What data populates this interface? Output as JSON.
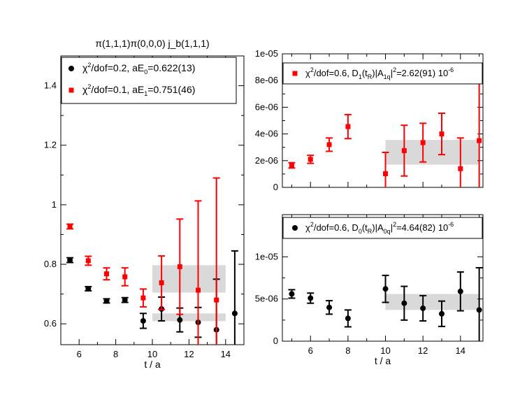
{
  "chart_data": [
    {
      "id": "left",
      "type": "scatter",
      "title": "π(1,1,1)π(0,0,0)  j_b(1,1,1)",
      "xlabel": "t / a",
      "ylabel": "",
      "xlim": [
        5,
        15
      ],
      "ylim": [
        0.53,
        1.5
      ],
      "xticks": [
        6,
        8,
        10,
        12,
        14
      ],
      "xtick_labels": [
        "6",
        "8",
        "10",
        "12",
        "14"
      ],
      "yticks": [
        0.6,
        0.8,
        1.0,
        1.2,
        1.4
      ],
      "ytick_labels": [
        "0.6",
        "0.8",
        "1",
        "1.2",
        "1.4"
      ],
      "legend": [
        {
          "series": "black",
          "chi": "χ",
          "chi_sup": "2",
          "text1": "/dof=0.2,  aE",
          "sub": "0",
          "text2": "=0.622(13)"
        },
        {
          "series": "red",
          "chi": "χ",
          "chi_sup": "2",
          "text1": "/dof=0.1,  aE",
          "sub": "1",
          "text2": "=0.751(46)"
        }
      ],
      "bands": [
        {
          "series": "black",
          "x": [
            10,
            14
          ],
          "y": [
            0.609,
            0.635
          ]
        },
        {
          "series": "red",
          "x": [
            10,
            14
          ],
          "y": [
            0.705,
            0.797
          ]
        }
      ],
      "series": [
        {
          "name": "black",
          "color": "#000000",
          "marker": "circle",
          "x": [
            5.5,
            6.5,
            7.5,
            8.5,
            9.5,
            10.5,
            11.5,
            12.5,
            13.5,
            14.5
          ],
          "y": [
            0.814,
            0.718,
            0.677,
            0.68,
            0.61,
            0.65,
            0.613,
            0.605,
            0.58,
            0.635
          ],
          "err": [
            0.008,
            0.007,
            0.007,
            0.008,
            0.025,
            0.04,
            0.04,
            0.05,
            0.17,
            0.21
          ]
        },
        {
          "name": "red",
          "color": "#ff0000",
          "marker": "square",
          "x": [
            5.5,
            6.5,
            7.5,
            8.5,
            9.5,
            10.5,
            11.5,
            12.5,
            13.5
          ],
          "y": [
            0.927,
            0.812,
            0.768,
            0.758,
            0.687,
            0.738,
            0.792,
            0.713,
            0.68
          ],
          "err": [
            0.008,
            0.015,
            0.02,
            0.03,
            0.03,
            0.09,
            0.16,
            0.3,
            0.41
          ]
        }
      ]
    },
    {
      "id": "top-right",
      "type": "scatter",
      "title": "",
      "xlabel": "",
      "ylabel": "",
      "xlim": [
        4.5,
        15.2
      ],
      "ylim": [
        0,
        1e-05
      ],
      "xticks": [
        6,
        8,
        10,
        12,
        14
      ],
      "xtick_labels": [],
      "yticks": [
        0,
        2e-06,
        4e-06,
        6e-06,
        8e-06,
        1e-05
      ],
      "ytick_labels": [
        "0",
        "2e-06",
        "4e-06",
        "6e-06",
        "8e-06",
        "1e-05"
      ],
      "legend": [
        {
          "series": "red",
          "chi": "χ",
          "chi_sup": "2",
          "text1": "/dof=0.6, D",
          "sub": "1",
          "text2": "(t",
          "sub2": "R",
          "text3": ")|A",
          "sub3": "1q",
          "text4": "|",
          "sup2": "2",
          "text5": "=2.62(91) 10",
          "sup3": "-6"
        }
      ],
      "bands": [
        {
          "series": "red",
          "x": [
            10,
            15
          ],
          "y": [
            1.7e-06,
            3.55e-06
          ]
        }
      ],
      "series": [
        {
          "name": "red",
          "color": "#ff0000",
          "marker": "square",
          "x": [
            5,
            6,
            7,
            8,
            10,
            11,
            12,
            13,
            14,
            15
          ],
          "y": [
            1.65e-06,
            2.1e-06,
            3.2e-06,
            4.55e-06,
            1.02e-06,
            2.75e-06,
            3.35e-06,
            4e-06,
            1.4e-06,
            3.5e-06
          ],
          "err": [
            2e-07,
            3e-07,
            5e-07,
            9e-07,
            1.6e-06,
            1.9e-06,
            1.45e-06,
            1.55e-06,
            2.3e-06,
            4.4e-06
          ]
        }
      ]
    },
    {
      "id": "bottom-right",
      "type": "scatter",
      "title": "",
      "xlabel": "t / a",
      "ylabel": "",
      "xlim": [
        4.5,
        15.2
      ],
      "ylim": [
        0,
        1.5e-05
      ],
      "xticks": [
        6,
        8,
        10,
        12,
        14
      ],
      "xtick_labels": [
        "6",
        "8",
        "10",
        "12",
        "14"
      ],
      "yticks": [
        0,
        5e-06,
        1e-05
      ],
      "ytick_labels": [
        "0",
        "5e-06",
        "1e-05"
      ],
      "legend": [
        {
          "series": "black",
          "chi": "χ",
          "chi_sup": "2",
          "text1": "/dof=0.6, D",
          "sub": "0",
          "text2": "(t",
          "sub2": "R",
          "text3": ")|A",
          "sub3": "0q",
          "text4": "|",
          "sup2": "2",
          "text5": "=4.64(82) 10",
          "sup3": "-6"
        }
      ],
      "bands": [
        {
          "series": "black",
          "x": [
            10,
            15
          ],
          "y": [
            3.7e-06,
            5.6e-06
          ]
        }
      ],
      "series": [
        {
          "name": "black",
          "color": "#000000",
          "marker": "circle",
          "x": [
            5,
            6,
            7,
            8,
            10,
            11,
            12,
            13,
            14,
            15
          ],
          "y": [
            5.6e-06,
            5.1e-06,
            4e-06,
            2.7e-06,
            6.2e-06,
            4.5e-06,
            3.9e-06,
            3.25e-06,
            5.9e-06,
            3.7e-06
          ],
          "err": [
            5e-07,
            6e-07,
            8e-07,
            1e-06,
            1.6e-06,
            2e-06,
            1.5e-06,
            1.5e-06,
            2.3e-06,
            5e-06
          ]
        }
      ]
    }
  ]
}
